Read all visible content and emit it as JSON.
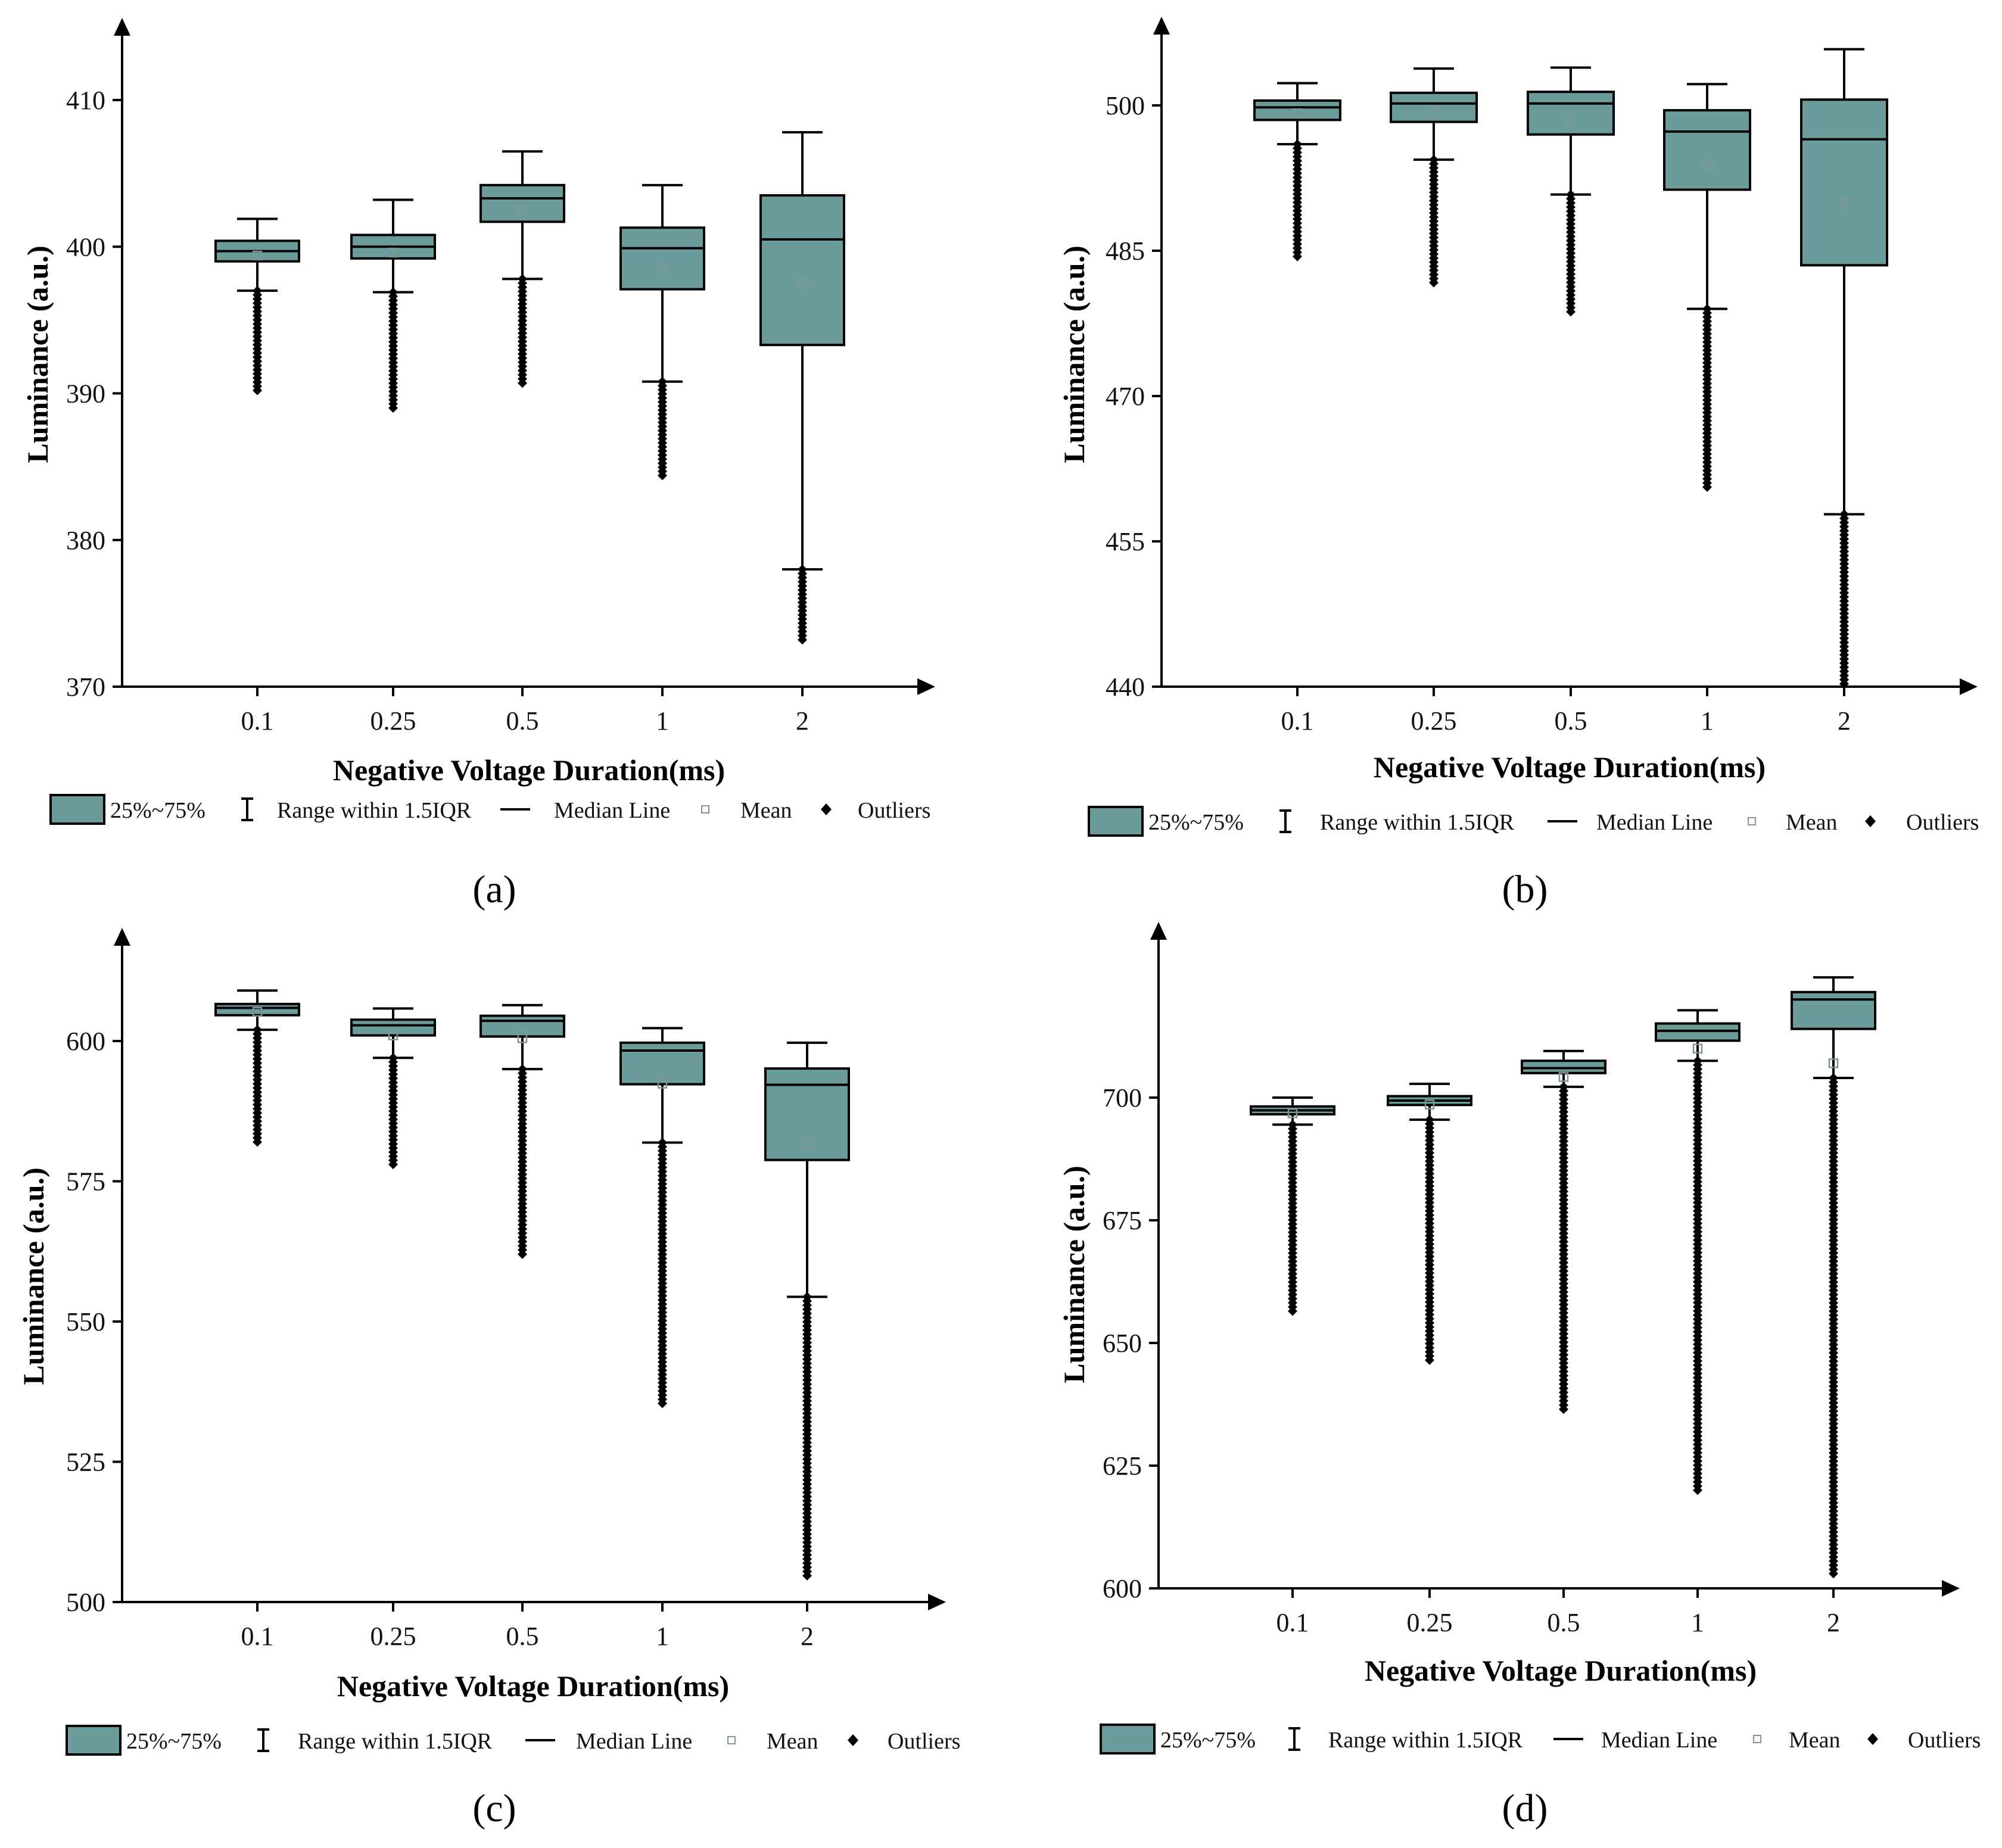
{
  "chart_data": [
    {
      "type": "box",
      "panel_label": "(a)",
      "xlabel": "Negative Voltage Duration(ms)",
      "ylabel": "Luminance (a.u.)",
      "categories": [
        "0.1",
        "0.25",
        "0.5",
        "1",
        "2"
      ],
      "ylim": [
        370,
        415
      ],
      "yticks": [
        370,
        380,
        390,
        400,
        410
      ],
      "boxes": [
        {
          "q1": 399.0,
          "median": 399.7,
          "q3": 400.4,
          "mean": 399.4,
          "whisker_low": 397.0,
          "whisker_high": 401.9,
          "outliers_range": [
            390.2,
            397.0
          ]
        },
        {
          "q1": 399.2,
          "median": 400.0,
          "q3": 400.8,
          "mean": 399.6,
          "whisker_low": 396.9,
          "whisker_high": 403.2,
          "outliers_range": [
            389.0,
            396.9
          ]
        },
        {
          "q1": 401.7,
          "median": 403.3,
          "q3": 404.2,
          "mean": 402.5,
          "whisker_low": 397.8,
          "whisker_high": 406.5,
          "outliers_range": [
            390.7,
            397.8
          ]
        },
        {
          "q1": 397.1,
          "median": 399.9,
          "q3": 401.3,
          "mean": 398.5,
          "whisker_low": 390.8,
          "whisker_high": 404.2,
          "outliers_range": [
            384.4,
            390.8
          ]
        },
        {
          "q1": 393.3,
          "median": 400.5,
          "q3": 403.5,
          "mean": 397.6,
          "whisker_low": 378.0,
          "whisker_high": 407.8,
          "outliers_range": [
            373.2,
            378.0
          ]
        }
      ]
    },
    {
      "type": "box",
      "panel_label": "(b)",
      "xlabel": "Negative Voltage Duration(ms)",
      "ylabel": "Luminance (a.u.)",
      "categories": [
        "0.1",
        "0.25",
        "0.5",
        "1",
        "2"
      ],
      "ylim": [
        440,
        507
      ],
      "yticks": [
        440,
        455,
        470,
        485,
        500
      ],
      "boxes": [
        {
          "q1": 498.5,
          "median": 499.8,
          "q3": 500.5,
          "mean": 499.2,
          "whisker_low": 496.0,
          "whisker_high": 502.3,
          "outliers_range": [
            484.4,
            496.0
          ]
        },
        {
          "q1": 498.3,
          "median": 500.2,
          "q3": 501.3,
          "mean": 499.2,
          "whisker_low": 494.4,
          "whisker_high": 503.8,
          "outliers_range": [
            481.7,
            494.4
          ]
        },
        {
          "q1": 497.0,
          "median": 500.2,
          "q3": 501.4,
          "mean": 498.3,
          "whisker_low": 490.8,
          "whisker_high": 503.9,
          "outliers_range": [
            478.7,
            490.8
          ]
        },
        {
          "q1": 491.3,
          "median": 497.3,
          "q3": 499.5,
          "mean": 493.9,
          "whisker_low": 479.0,
          "whisker_high": 502.2,
          "outliers_range": [
            460.6,
            479.0
          ]
        },
        {
          "q1": 483.5,
          "median": 496.5,
          "q3": 500.6,
          "mean": 489.8,
          "whisker_low": 457.8,
          "whisker_high": 505.8,
          "outliers_range": [
            440.3,
            457.8
          ]
        }
      ]
    },
    {
      "type": "box",
      "panel_label": "(c)",
      "xlabel": "Negative Voltage Duration(ms)",
      "ylabel": "Luminance (a.u.)",
      "categories": [
        "0.1",
        "0.25",
        "0.5",
        "1",
        "2"
      ],
      "ylim": [
        500,
        618
      ],
      "yticks": [
        500,
        525,
        550,
        575,
        600
      ],
      "boxes": [
        {
          "q1": 604.6,
          "median": 605.9,
          "q3": 606.6,
          "mean": 605.2,
          "whisker_low": 602.0,
          "whisker_high": 609.0,
          "outliers_range": [
            582.0,
            602.0
          ]
        },
        {
          "q1": 601.0,
          "median": 602.8,
          "q3": 603.8,
          "mean": 601.0,
          "whisker_low": 597.0,
          "whisker_high": 605.8,
          "outliers_range": [
            578.0,
            597.0
          ]
        },
        {
          "q1": 600.8,
          "median": 603.6,
          "q3": 604.5,
          "mean": 600.5,
          "whisker_low": 595.0,
          "whisker_high": 606.4,
          "outliers_range": [
            562.0,
            595.0
          ]
        },
        {
          "q1": 592.3,
          "median": 598.3,
          "q3": 599.7,
          "mean": 592.4,
          "whisker_low": 581.9,
          "whisker_high": 602.3,
          "outliers_range": [
            535.4,
            581.9
          ]
        },
        {
          "q1": 578.8,
          "median": 592.2,
          "q3": 595.1,
          "mean": 581.6,
          "whisker_low": 554.4,
          "whisker_high": 599.7,
          "outliers_range": [
            504.7,
            554.4
          ]
        }
      ]
    },
    {
      "type": "box",
      "panel_label": "(d)",
      "xlabel": "Negative Voltage Duration(ms)",
      "ylabel": "Luminance (a.u.)",
      "categories": [
        "0.1",
        "0.25",
        "0.5",
        "1",
        "2"
      ],
      "ylim": [
        600,
        732
      ],
      "yticks": [
        600,
        625,
        650,
        675,
        700
      ],
      "boxes": [
        {
          "q1": 696.6,
          "median": 697.4,
          "q3": 698.2,
          "mean": 696.8,
          "whisker_low": 694.5,
          "whisker_high": 700.0,
          "outliers_range": [
            656.5,
            694.5
          ]
        },
        {
          "q1": 698.5,
          "median": 699.4,
          "q3": 700.3,
          "mean": 698.6,
          "whisker_low": 695.5,
          "whisker_high": 702.8,
          "outliers_range": [
            646.5,
            695.5
          ]
        },
        {
          "q1": 705.0,
          "median": 706.0,
          "q3": 707.5,
          "mean": 704.2,
          "whisker_low": 702.2,
          "whisker_high": 709.5,
          "outliers_range": [
            636.5,
            702.2
          ]
        },
        {
          "q1": 711.6,
          "median": 713.6,
          "q3": 715.1,
          "mean": 710.0,
          "whisker_low": 707.5,
          "whisker_high": 717.8,
          "outliers_range": [
            620.0,
            707.5
          ]
        },
        {
          "q1": 714.0,
          "median": 720.0,
          "q3": 721.5,
          "mean": 707.0,
          "whisker_low": 704.0,
          "whisker_high": 724.5,
          "outliers_range": [
            603.0,
            704.0
          ]
        }
      ]
    }
  ],
  "legend": {
    "box": "25%~75%",
    "range": "Range within 1.5IQR",
    "median": "Median Line",
    "mean": "Mean",
    "outliers": "Outliers"
  },
  "colors": {
    "box_fill": "#6b9c9b",
    "line": "#000000",
    "mean_marker": "#7d9694",
    "outlier": "#000000"
  }
}
